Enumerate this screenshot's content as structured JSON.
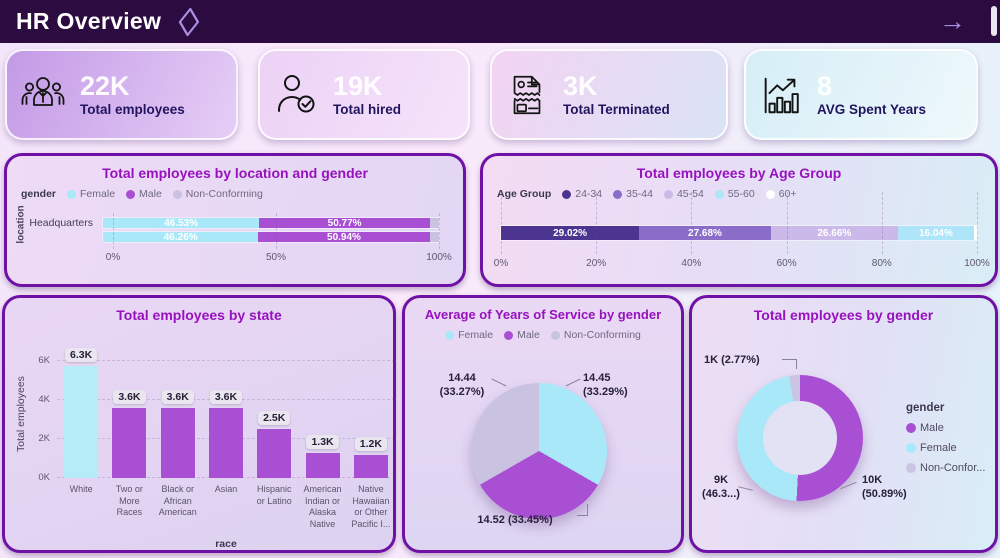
{
  "header": {
    "title": "HR Overview"
  },
  "icons": {
    "diamond": "◇",
    "arrow_forward": "→"
  },
  "colors": {
    "accent_border": "#6e11a4",
    "title_purple": "#9712be",
    "female": "#a9e8f8",
    "male": "#a84fd3",
    "non_conforming": "#c9c2e0"
  },
  "kpis": [
    {
      "icon": "people-group-icon",
      "value": "22K",
      "label": "Total employees"
    },
    {
      "icon": "person-check-icon",
      "value": "19K",
      "label": "Total hired"
    },
    {
      "icon": "terminated-document-icon",
      "value": "3K",
      "label": "Total Terminated"
    },
    {
      "icon": "growth-chart-icon",
      "value": "8",
      "label": "AVG Spent Years"
    }
  ],
  "chart_data": [
    {
      "id": "location_gender",
      "type": "bar",
      "stacked": true,
      "orientation": "horizontal",
      "title": "Total employees by location and gender",
      "legend_title": "gender",
      "legend": [
        "Female",
        "Male",
        "Non-Conforming"
      ],
      "legend_colors": [
        "#a9e8f8",
        "#a84fd3",
        "#c9c2e0"
      ],
      "colors": [
        "#a9e8f8",
        "#a84fd3",
        "#c9c2e0"
      ],
      "ylabel": "location",
      "categories": [
        "Headquarters",
        ""
      ],
      "series": [
        {
          "name": "Female",
          "values": [
            46.53,
            46.26
          ],
          "labels": [
            "46.53%",
            "46.26%"
          ]
        },
        {
          "name": "Male",
          "values": [
            50.77,
            50.94
          ],
          "labels": [
            "50.77%",
            "50.94%"
          ]
        },
        {
          "name": "Non-Conforming",
          "values": [
            2.7,
            2.8
          ],
          "labels": [
            null,
            null
          ]
        }
      ],
      "xticks": [
        "0%",
        "50%",
        "100%"
      ],
      "xlim": [
        0,
        100
      ],
      "grid": true,
      "legend_position": "top-left"
    },
    {
      "id": "age_group",
      "type": "bar",
      "stacked": true,
      "orientation": "horizontal",
      "title": "Total employees by Age Group",
      "legend_title": "Age Group",
      "legend": [
        "24-34",
        "35-44",
        "45-54",
        "55-60",
        "60+"
      ],
      "legend_colors": [
        "#4b3590",
        "#8a6cc9",
        "#cbbae9",
        "#aee5f8",
        "#ffffff"
      ],
      "colors": [
        "#4b3590",
        "#8a6cc9",
        "#cbbae9",
        "#aee5f8",
        "#ffffff"
      ],
      "categories": [
        ""
      ],
      "series": [
        {
          "name": "24-34",
          "values": [
            29.02
          ],
          "labels": [
            "29.02%"
          ]
        },
        {
          "name": "35-44",
          "values": [
            27.68
          ],
          "labels": [
            "27.68%"
          ]
        },
        {
          "name": "45-54",
          "values": [
            26.66
          ],
          "labels": [
            "26.66%"
          ]
        },
        {
          "name": "55-60",
          "values": [
            16.04
          ],
          "labels": [
            "16.04%"
          ]
        },
        {
          "name": "60+",
          "values": [
            0.6
          ],
          "labels": [
            null
          ]
        }
      ],
      "xticks": [
        "0%",
        "20%",
        "40%",
        "60%",
        "80%",
        "100%"
      ],
      "xlim": [
        0,
        100
      ],
      "grid": true,
      "legend_position": "top-left"
    },
    {
      "id": "state_race",
      "type": "bar",
      "title": "Total employees by state",
      "xlabel": "race",
      "ylabel": "Total employees",
      "categories": [
        "White",
        "Two or More Races",
        "Black or African American",
        "Asian",
        "Hispanic or Latino",
        "American Indian or Alaska Native",
        "Native Hawaiian or Other Pacific I..."
      ],
      "values": [
        6300,
        3600,
        3600,
        3600,
        2500,
        1300,
        1200
      ],
      "value_labels": [
        "6.3K",
        "3.6K",
        "3.6K",
        "3.6K",
        "2.5K",
        "1.3K",
        "1.2K"
      ],
      "bar_colors": [
        "#b5ecf8",
        "#a84fd3",
        "#a84fd3",
        "#a84fd3",
        "#a84fd3",
        "#a84fd3",
        "#a84fd3"
      ],
      "yticks": [
        "0K",
        "2K",
        "4K",
        "6K"
      ],
      "ylim": [
        0,
        7000
      ],
      "ytick_step": 2000,
      "grid": true
    },
    {
      "id": "service_gender",
      "type": "pie",
      "title": "Average of Years of Service by gender",
      "legend": [
        "Female",
        "Male",
        "Non-Conforming"
      ],
      "legend_colors": [
        "#a9e8f8",
        "#a84fd3",
        "#c9c2e0"
      ],
      "colors": [
        "#a9e8f8",
        "#a84fd3",
        "#c9c2e0"
      ],
      "legend_position": "top",
      "slices": [
        {
          "name": "Female",
          "value": 14.45,
          "pct": 33.29,
          "label_lines": [
            "14.45",
            "(33.29%)"
          ]
        },
        {
          "name": "Male",
          "value": 14.52,
          "pct": 33.45,
          "label_lines": [
            "14.52 (33.45%)"
          ]
        },
        {
          "name": "Non-Conforming",
          "value": 14.44,
          "pct": 33.27,
          "label_lines": [
            "14.44",
            "(33.27%)"
          ]
        }
      ]
    },
    {
      "id": "gender_total",
      "type": "pie",
      "donut": true,
      "title": "Total employees by gender",
      "legend_title": "gender",
      "legend": [
        "Male",
        "Female",
        "Non-Confor..."
      ],
      "legend_colors": [
        "#a84fd3",
        "#a9e8f8",
        "#cbc4e2"
      ],
      "colors": [
        "#a84fd3",
        "#a9e8f8",
        "#cbc4e2"
      ],
      "legend_position": "right",
      "slices": [
        {
          "name": "Male",
          "pct": 50.89,
          "label_lines": [
            "10K",
            "(50.89%)"
          ]
        },
        {
          "name": "Female",
          "pct": 46.34,
          "label_lines": [
            "9K",
            "(46.3...)"
          ]
        },
        {
          "name": "Non-Conforming",
          "pct": 2.77,
          "label_lines": [
            "1K (2.77%)"
          ]
        }
      ]
    }
  ]
}
